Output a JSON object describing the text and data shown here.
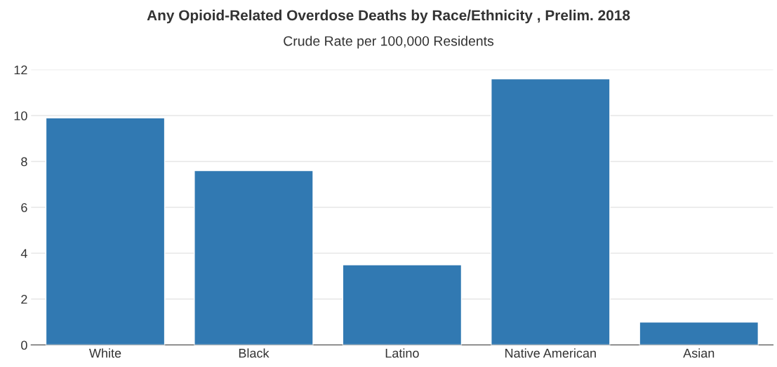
{
  "chart_data": {
    "type": "bar",
    "title": "Any Opioid-Related Overdose Deaths by Race/Ethnicity , Prelim. 2018",
    "subtitle": "Crude Rate per 100,000 Residents",
    "categories": [
      "White",
      "Black",
      "Latino",
      "Native American",
      "Asian"
    ],
    "values": [
      9.9,
      7.6,
      3.5,
      11.6,
      1.0
    ],
    "color": "#3179b2",
    "ylim": [
      0,
      12
    ],
    "yticks": [
      0,
      2,
      4,
      6,
      8,
      10,
      12
    ],
    "grid": "y"
  }
}
